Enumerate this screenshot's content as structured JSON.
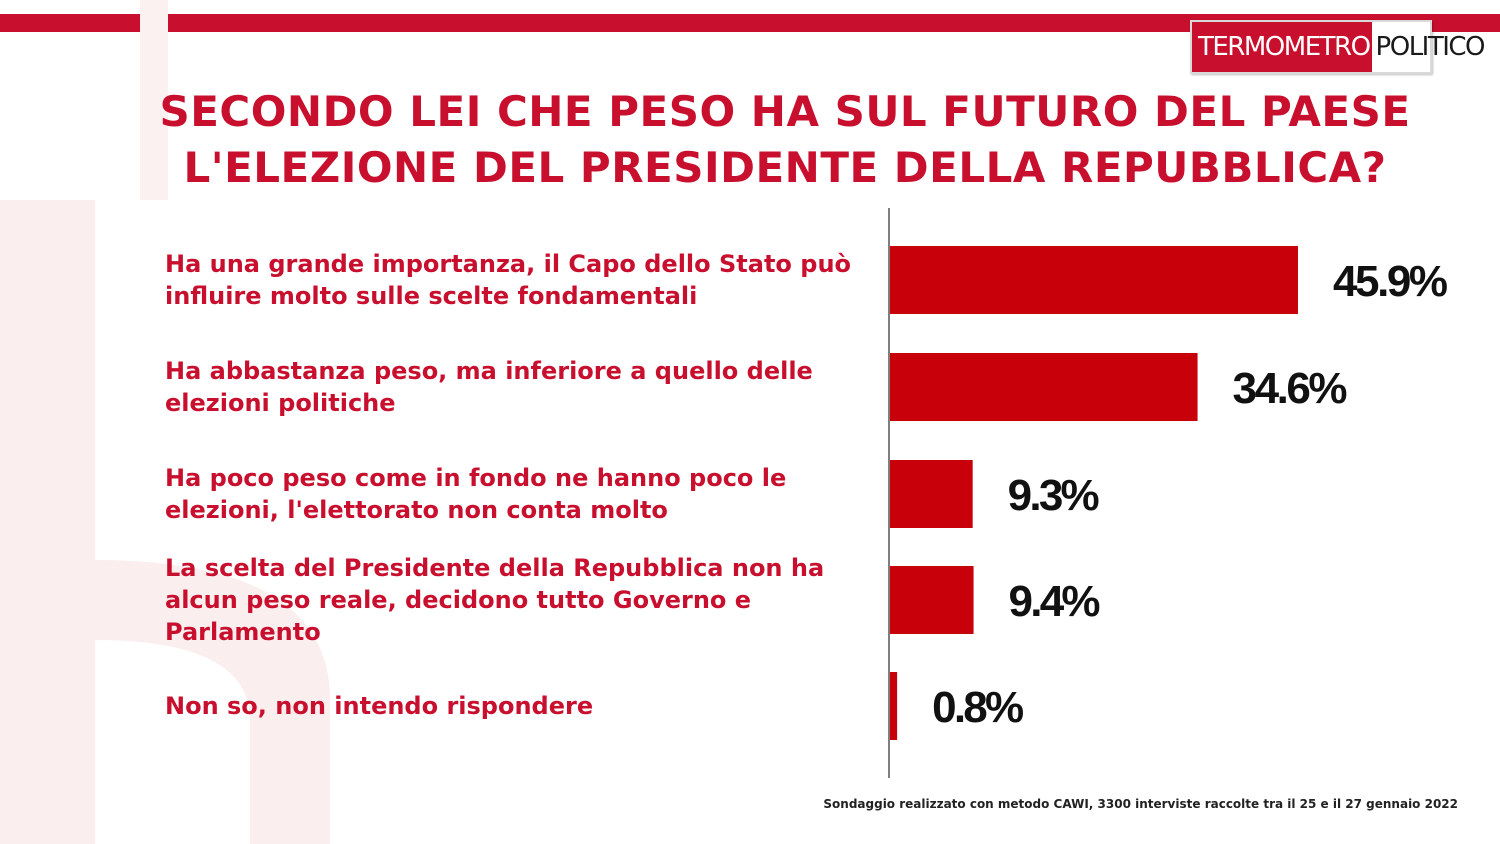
{
  "header": {
    "logo_part1": "TERMOMETRO",
    "logo_part2": "POLITICO",
    "title_line1": "SECONDO LEI CHE PESO HA SUL FUTURO DEL PAESE",
    "title_line2": "L'ELEZIONE DEL PRESIDENTE DELLA REPUBBLICA?"
  },
  "footnote": "Sondaggio realizzato con metodo CAWI, 3300 interviste raccolte tra il 25 e il 27 gennaio 2022",
  "colors": {
    "accent": "#c8102e",
    "bar": "#c8000a",
    "value_text": "#111111"
  },
  "chart_data": {
    "type": "bar",
    "orientation": "horizontal",
    "categories": [
      [
        "Ha una grande importanza, il Capo dello Stato può",
        "influire molto sulle scelte fondamentali"
      ],
      [
        "Ha abbastanza peso, ma inferiore a quello delle",
        "elezioni politiche"
      ],
      [
        "Ha poco peso come in fondo ne hanno poco le",
        "elezioni, l'elettorato non conta molto"
      ],
      [
        "La scelta del Presidente della Repubblica non ha",
        "alcun peso reale, decidono tutto Governo e",
        "Parlamento"
      ],
      [
        "Non so, non intendo rispondere"
      ]
    ],
    "values": [
      45.9,
      34.6,
      9.3,
      9.4,
      0.8
    ],
    "value_labels": [
      "45.9%",
      "34.6%",
      "9.3%",
      "9.4%",
      "0.8%"
    ],
    "unit": "%",
    "xlim": [
      0,
      50
    ],
    "grid": false,
    "legend": "none"
  }
}
